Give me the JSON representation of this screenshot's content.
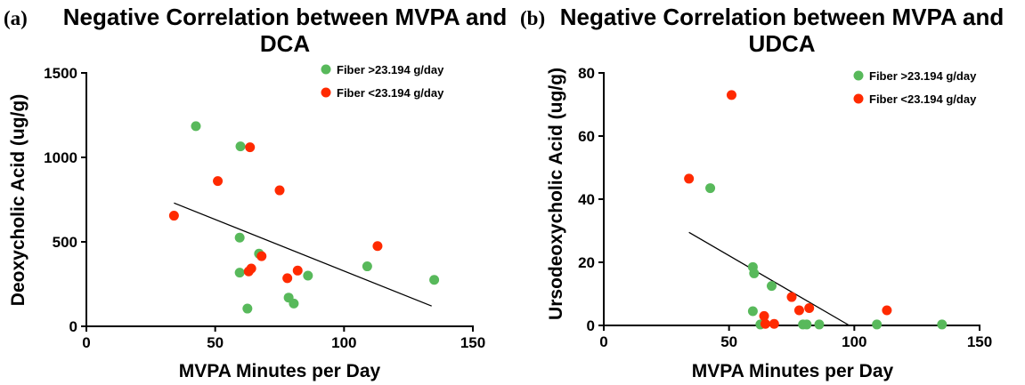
{
  "chart_data": [
    {
      "type": "scatter",
      "panel_label": "(a)",
      "title_lines": [
        "Negative Correlation between MVPA and",
        "DCA"
      ],
      "xlabel": "MVPA Minutes per Day",
      "ylabel": "Deoxycholic Acid (ug/g)",
      "xlim": [
        0,
        150
      ],
      "ylim": [
        0,
        1500
      ],
      "xticks": [
        0,
        50,
        100,
        150
      ],
      "yticks": [
        0,
        500,
        1000,
        1500
      ],
      "legend_position": "top-right",
      "grid": false,
      "series": [
        {
          "name": "Fiber >23.194 g/day",
          "color": "#58b95b",
          "points": [
            [
              42.5,
              1185
            ],
            [
              59.8,
              1065
            ],
            [
              59.5,
              525
            ],
            [
              59.5,
              318
            ],
            [
              62.5,
              105
            ],
            [
              67.0,
              430
            ],
            [
              78.5,
              170
            ],
            [
              80.5,
              135
            ],
            [
              86.0,
              300
            ],
            [
              109.0,
              355
            ],
            [
              135.0,
              275
            ]
          ]
        },
        {
          "name": "Fiber <23.194 g/day",
          "color": "#ff2a00",
          "points": [
            [
              34.0,
              655
            ],
            [
              51.0,
              860
            ],
            [
              63.5,
              1060
            ],
            [
              63.0,
              325
            ],
            [
              64.0,
              342
            ],
            [
              68.0,
              415
            ],
            [
              75.0,
              805
            ],
            [
              78.0,
              285
            ],
            [
              82.0,
              330
            ],
            [
              113.0,
              475
            ]
          ]
        }
      ],
      "fit_line": [
        [
          34,
          730
        ],
        [
          134,
          120
        ]
      ]
    },
    {
      "type": "scatter",
      "panel_label": "(b)",
      "title_lines": [
        "Negative Correlation between MVPA and",
        "UDCA"
      ],
      "xlabel": "MVPA Minutes per Day",
      "ylabel": "Ursodeoxycholic Acid (ug/g)",
      "xlim": [
        0,
        150
      ],
      "ylim": [
        0,
        80
      ],
      "xticks": [
        0,
        50,
        100,
        150
      ],
      "yticks": [
        0,
        20,
        40,
        60,
        80
      ],
      "legend_position": "top-right",
      "grid": false,
      "series": [
        {
          "name": "Fiber >23.194 g/day",
          "color": "#58b95b",
          "points": [
            [
              42.5,
              43.5
            ],
            [
              59.5,
              18.5
            ],
            [
              60.0,
              16.5
            ],
            [
              59.5,
              4.5
            ],
            [
              62.5,
              0.3
            ],
            [
              67.0,
              12.5
            ],
            [
              79.5,
              0.3
            ],
            [
              81.0,
              0.3
            ],
            [
              86.0,
              0.3
            ],
            [
              109.0,
              0.3
            ],
            [
              135.0,
              0.3
            ]
          ]
        },
        {
          "name": "Fiber <23.194 g/day",
          "color": "#ff2a00",
          "points": [
            [
              34.0,
              46.5
            ],
            [
              51.0,
              73.0
            ],
            [
              64.0,
              3.0
            ],
            [
              64.5,
              0.5
            ],
            [
              68.0,
              0.5
            ],
            [
              75.0,
              9.0
            ],
            [
              78.0,
              4.8
            ],
            [
              82.0,
              5.5
            ],
            [
              113.0,
              4.8
            ]
          ]
        }
      ],
      "fit_line": [
        [
          34,
          29.5
        ],
        [
          98,
          0
        ]
      ]
    }
  ]
}
